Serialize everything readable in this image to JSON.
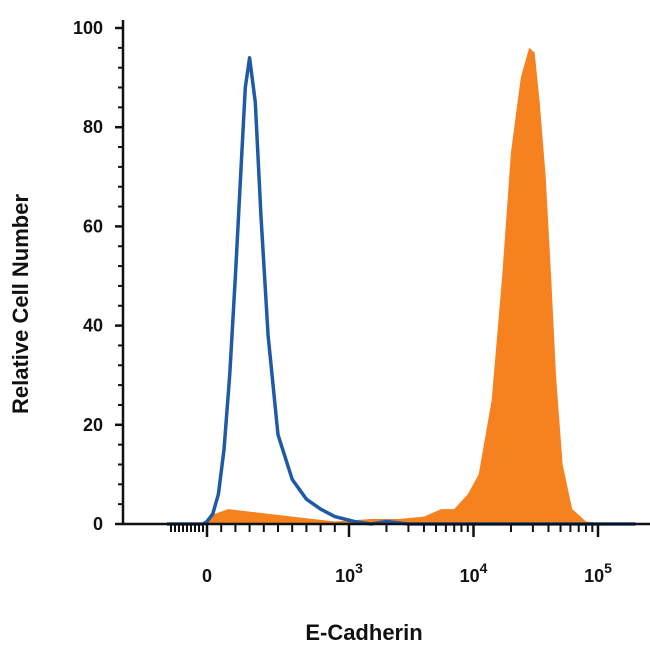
{
  "chart_data": {
    "type": "area",
    "xlabel": "E-Cadherin",
    "ylabel": "Relative Cell Number",
    "ylim": [
      0,
      100
    ],
    "yticks": [
      0,
      20,
      40,
      60,
      80,
      100
    ],
    "x_scale": "biexponential",
    "xlim": [
      -1000,
      200000
    ],
    "xticks": [
      {
        "value": 0,
        "base": "0",
        "exp": ""
      },
      {
        "value": 1000,
        "base": "10",
        "exp": "3"
      },
      {
        "value": 10000,
        "base": "10",
        "exp": "4"
      },
      {
        "value": 100000,
        "base": "10",
        "exp": "5"
      }
    ],
    "grid": false,
    "legend": "none",
    "series": [
      {
        "style": "filled",
        "color": "#F5821F",
        "x": [
          -1000,
          0,
          50,
          150,
          300,
          600,
          900,
          1500,
          2500,
          4000,
          5500,
          7000,
          9000,
          11000,
          14000,
          17000,
          20000,
          24000,
          28000,
          31000,
          34000,
          38000,
          42000,
          46000,
          52000,
          62000,
          80000,
          120000,
          200000
        ],
        "y": [
          0,
          0,
          2,
          3,
          2.5,
          1.5,
          0.5,
          1,
          1,
          1.5,
          3,
          3,
          6,
          10,
          25,
          50,
          75,
          90,
          96,
          95,
          85,
          70,
          50,
          30,
          12,
          3,
          0.5,
          0,
          0
        ]
      },
      {
        "style": "line",
        "color": "#1F5AA6",
        "x": [
          -1000,
          -100,
          0,
          40,
          80,
          120,
          160,
          200,
          240,
          270,
          300,
          340,
          380,
          430,
          500,
          600,
          700,
          800,
          900,
          1100,
          1500,
          2000,
          3000,
          10000,
          200000
        ],
        "y": [
          0,
          0,
          0.5,
          2,
          6,
          15,
          30,
          50,
          72,
          88,
          94,
          85,
          62,
          38,
          18,
          9,
          5,
          3,
          1.5,
          0.5,
          0,
          0.5,
          0,
          0,
          0
        ]
      }
    ]
  }
}
